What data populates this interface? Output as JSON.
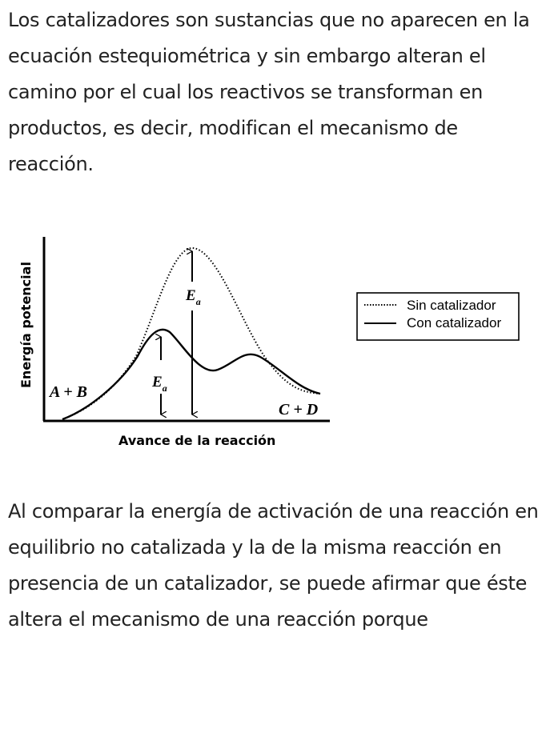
{
  "paragraph_1": "Los catalizadores son sustancias que no aparecen en la ecuación estequiométrica y sin embargo alteran el camino por el cual los reactivos se transforman en productos, es decir, modifican el mecanismo de reacción.",
  "figure": {
    "ylabel": "Energía potencial",
    "xlabel": "Avance de la reacción",
    "reactants_label": "A + B",
    "products_label": "C + D",
    "ea_label_main": "E",
    "ea_label_sub": "a",
    "legend": {
      "uncatalyzed": "Sin catalizador",
      "catalyzed": "Con catalizador"
    }
  },
  "paragraph_2": "Al comparar la energía de activación de una reacción en equilibrio no catalizada y la de la misma reacción en presencia de un catalizador, se puede afirmar que éste altera el mecanismo de una reacción porque"
}
